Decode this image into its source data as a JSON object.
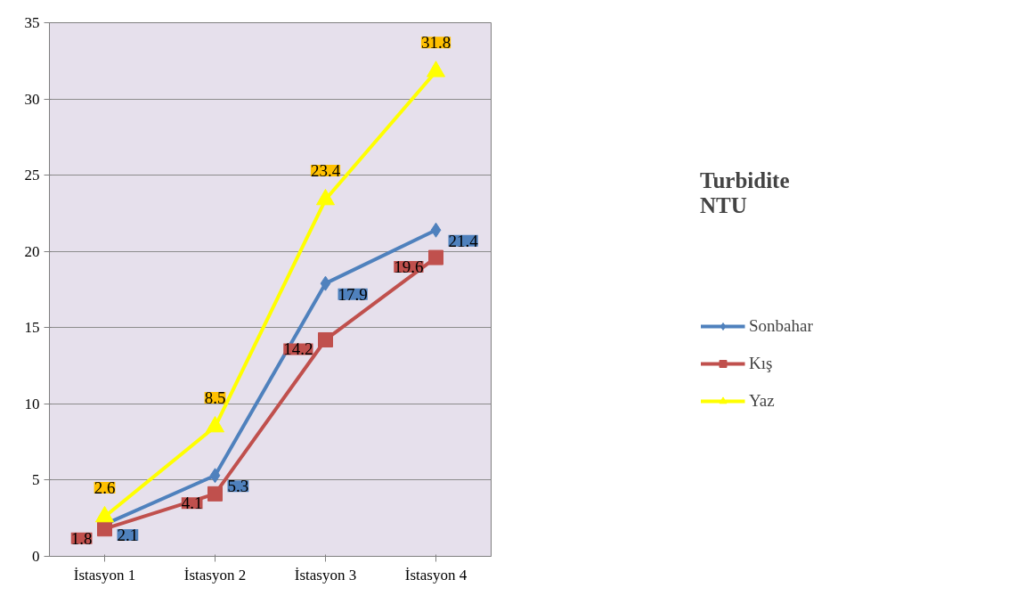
{
  "chart_data": {
    "type": "line",
    "title": "Turbidite\nNTU",
    "categories": [
      "İstasyon 1",
      "İstasyon 2",
      "İstasyon 3",
      "İstasyon 4"
    ],
    "series": [
      {
        "name": "Sonbahar",
        "color": "#4f81bd",
        "marker": "diamond",
        "values": [
          2.1,
          5.3,
          17.9,
          21.4
        ]
      },
      {
        "name": "Kış",
        "color": "#c0504d",
        "marker": "square",
        "values": [
          1.8,
          4.1,
          14.2,
          19.6
        ]
      },
      {
        "name": "Yaz",
        "color": "#ffff00",
        "marker": "triangle",
        "values": [
          2.6,
          8.5,
          23.4,
          31.8
        ]
      }
    ],
    "ylim": [
      0,
      35
    ],
    "yticks": [
      0,
      5,
      10,
      15,
      20,
      25,
      30,
      35
    ],
    "grid": "y",
    "legend": "right",
    "data_labels": true
  }
}
